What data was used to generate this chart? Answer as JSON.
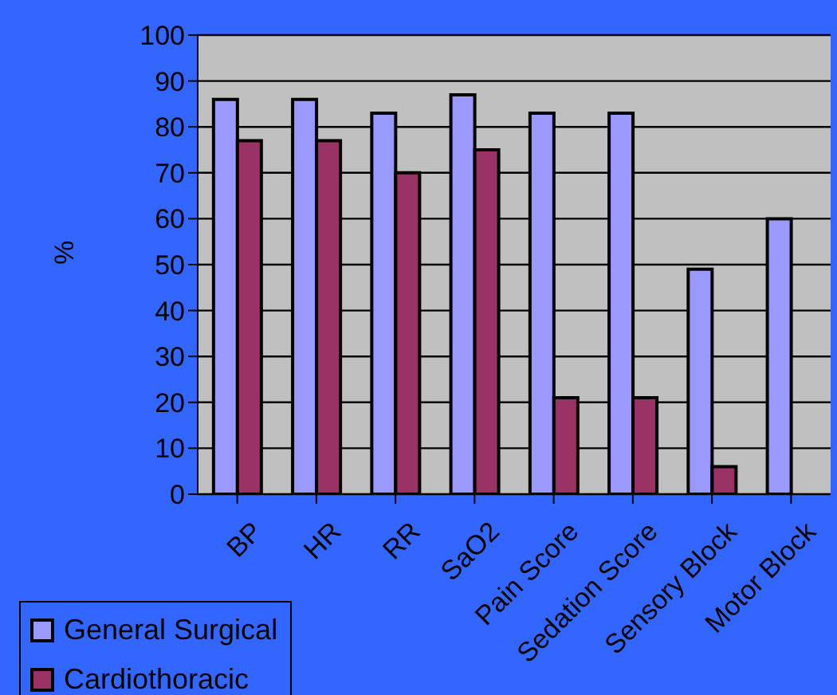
{
  "chart_data": {
    "type": "bar",
    "ylabel": "%",
    "categories": [
      "BP",
      "HR",
      "RR",
      "SaO2",
      "Pain Score",
      "Sedation Score",
      "Sensory Block",
      "Motor Block"
    ],
    "series": [
      {
        "name": "General Surgical",
        "color": "#9999ff",
        "values": [
          86,
          86,
          83,
          87,
          83,
          83,
          49,
          60
        ]
      },
      {
        "name": "Cardiothoracic",
        "color": "#993366",
        "values": [
          77,
          77,
          70,
          75,
          21,
          21,
          6,
          0
        ]
      }
    ],
    "ylim": [
      0,
      100
    ],
    "yticks": [
      0,
      10,
      20,
      30,
      40,
      50,
      60,
      70,
      80,
      90,
      100
    ],
    "grid": "y",
    "legend": "bottom left"
  }
}
